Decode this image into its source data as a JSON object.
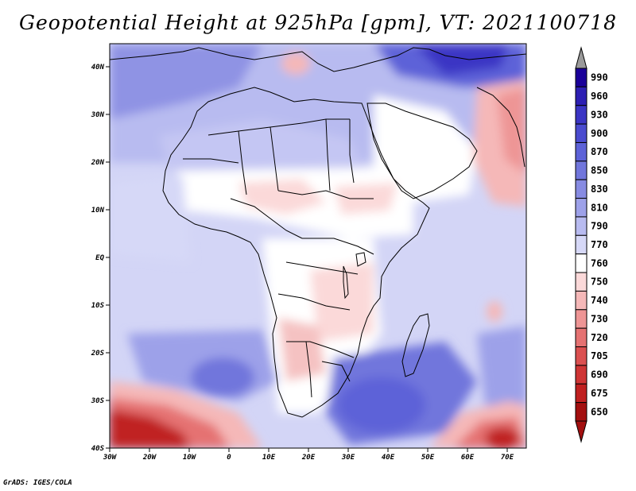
{
  "title": "Geopotential Height at 925hPa [gpm], VT: 2021100718",
  "credit": "GrADS: IGES/COLA",
  "map": {
    "lat_labels": [
      "40N",
      "30N",
      "20N",
      "10N",
      "EQ",
      "10S",
      "20S",
      "30S",
      "40S"
    ],
    "lon_labels": [
      "30W",
      "20W",
      "10W",
      "0",
      "10E",
      "20E",
      "30E",
      "40E",
      "50E",
      "60E",
      "70E"
    ]
  },
  "colorbar": {
    "levels": [
      "990",
      "960",
      "930",
      "900",
      "870",
      "850",
      "830",
      "810",
      "790",
      "770",
      "760",
      "750",
      "740",
      "730",
      "720",
      "705",
      "690",
      "675",
      "650"
    ],
    "colors": [
      "#1a0099",
      "#2d1fb3",
      "#3b35c4",
      "#4a4bcf",
      "#5d62d8",
      "#7176dc",
      "#878be2",
      "#9da1e9",
      "#b8bbf0",
      "#d6d8f7",
      "#ffffff",
      "#fbd9d9",
      "#f5b8b8",
      "#ee9595",
      "#e57272",
      "#db5050",
      "#cf3535",
      "#c02020",
      "#a30f0f"
    ],
    "over_color": "#9a9a9a",
    "under_color": "#a30f0f"
  }
}
